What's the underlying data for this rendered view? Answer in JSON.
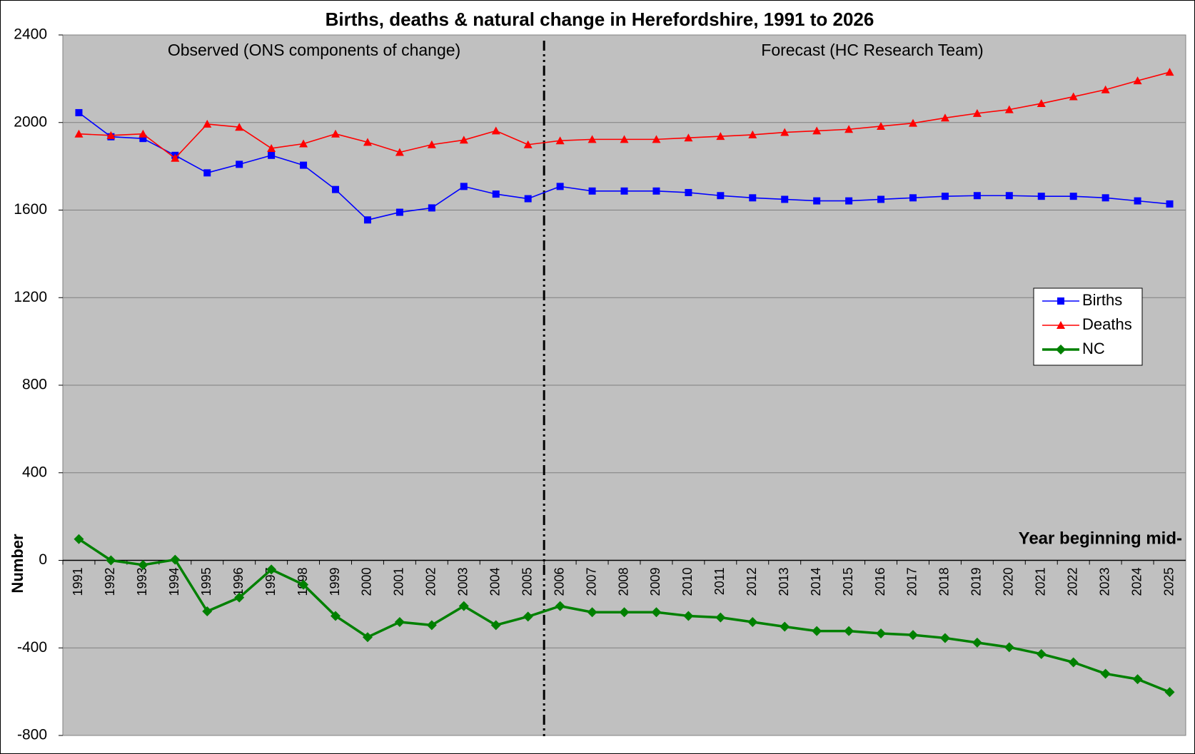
{
  "chart_data": {
    "type": "line",
    "title": "Births, deaths & natural change in Herefordshire, 1991 to 2026",
    "y_label": "Number",
    "x_label": "Year beginning mid-",
    "annotations": [
      "Observed (ONS components of change)",
      "Forecast (HC Research Team)"
    ],
    "categories": [
      "1991",
      "1992",
      "1993",
      "1994",
      "1995",
      "1996",
      "1997",
      "1998",
      "1999",
      "2000",
      "2001",
      "2002",
      "2003",
      "2004",
      "2005",
      "2006",
      "2007",
      "2008",
      "2009",
      "2010",
      "2011",
      "2012",
      "2013",
      "2014",
      "2015",
      "2016",
      "2017",
      "2018",
      "2019",
      "2020",
      "2021",
      "2022",
      "2023",
      "2024",
      "2025"
    ],
    "series": [
      {
        "name": "Births",
        "color": "#0000ff",
        "marker": "square",
        "values": [
          2045,
          1935,
          1927,
          1850,
          1770,
          1809,
          1850,
          1805,
          1694,
          1555,
          1590,
          1610,
          1708,
          1673,
          1652,
          1708,
          1687,
          1687,
          1687,
          1680,
          1666,
          1656,
          1649,
          1642,
          1642,
          1649,
          1656,
          1663,
          1666,
          1666,
          1663,
          1663,
          1656,
          1642,
          1628
        ]
      },
      {
        "name": "Deaths",
        "color": "#ff0000",
        "marker": "triangle",
        "values": [
          1948,
          1941,
          1948,
          1837,
          1993,
          1979,
          1882,
          1903,
          1948,
          1910,
          1864,
          1899,
          1920,
          1962,
          1899,
          1917,
          1923,
          1923,
          1923,
          1930,
          1937,
          1944,
          1955,
          1962,
          1969,
          1983,
          1997,
          2021,
          2042,
          2059,
          2087,
          2118,
          2150,
          2191,
          2230
        ]
      },
      {
        "name": "NC",
        "color": "#008000",
        "marker": "diamond",
        "values": [
          97,
          0,
          -21,
          3,
          -233,
          -170,
          -42,
          -111,
          -254,
          -351,
          -282,
          -296,
          -209,
          -296,
          -257,
          -209,
          -237,
          -237,
          -237,
          -254,
          -261,
          -282,
          -303,
          -323,
          -323,
          -334,
          -341,
          -355,
          -376,
          -397,
          -428,
          -466,
          -518,
          -543,
          -602
        ]
      }
    ],
    "ylim": [
      -800,
      2400
    ],
    "yticks": [
      -800,
      -400,
      0,
      400,
      800,
      1200,
      1600,
      2000,
      2400
    ],
    "grid": true,
    "legend": "right"
  }
}
